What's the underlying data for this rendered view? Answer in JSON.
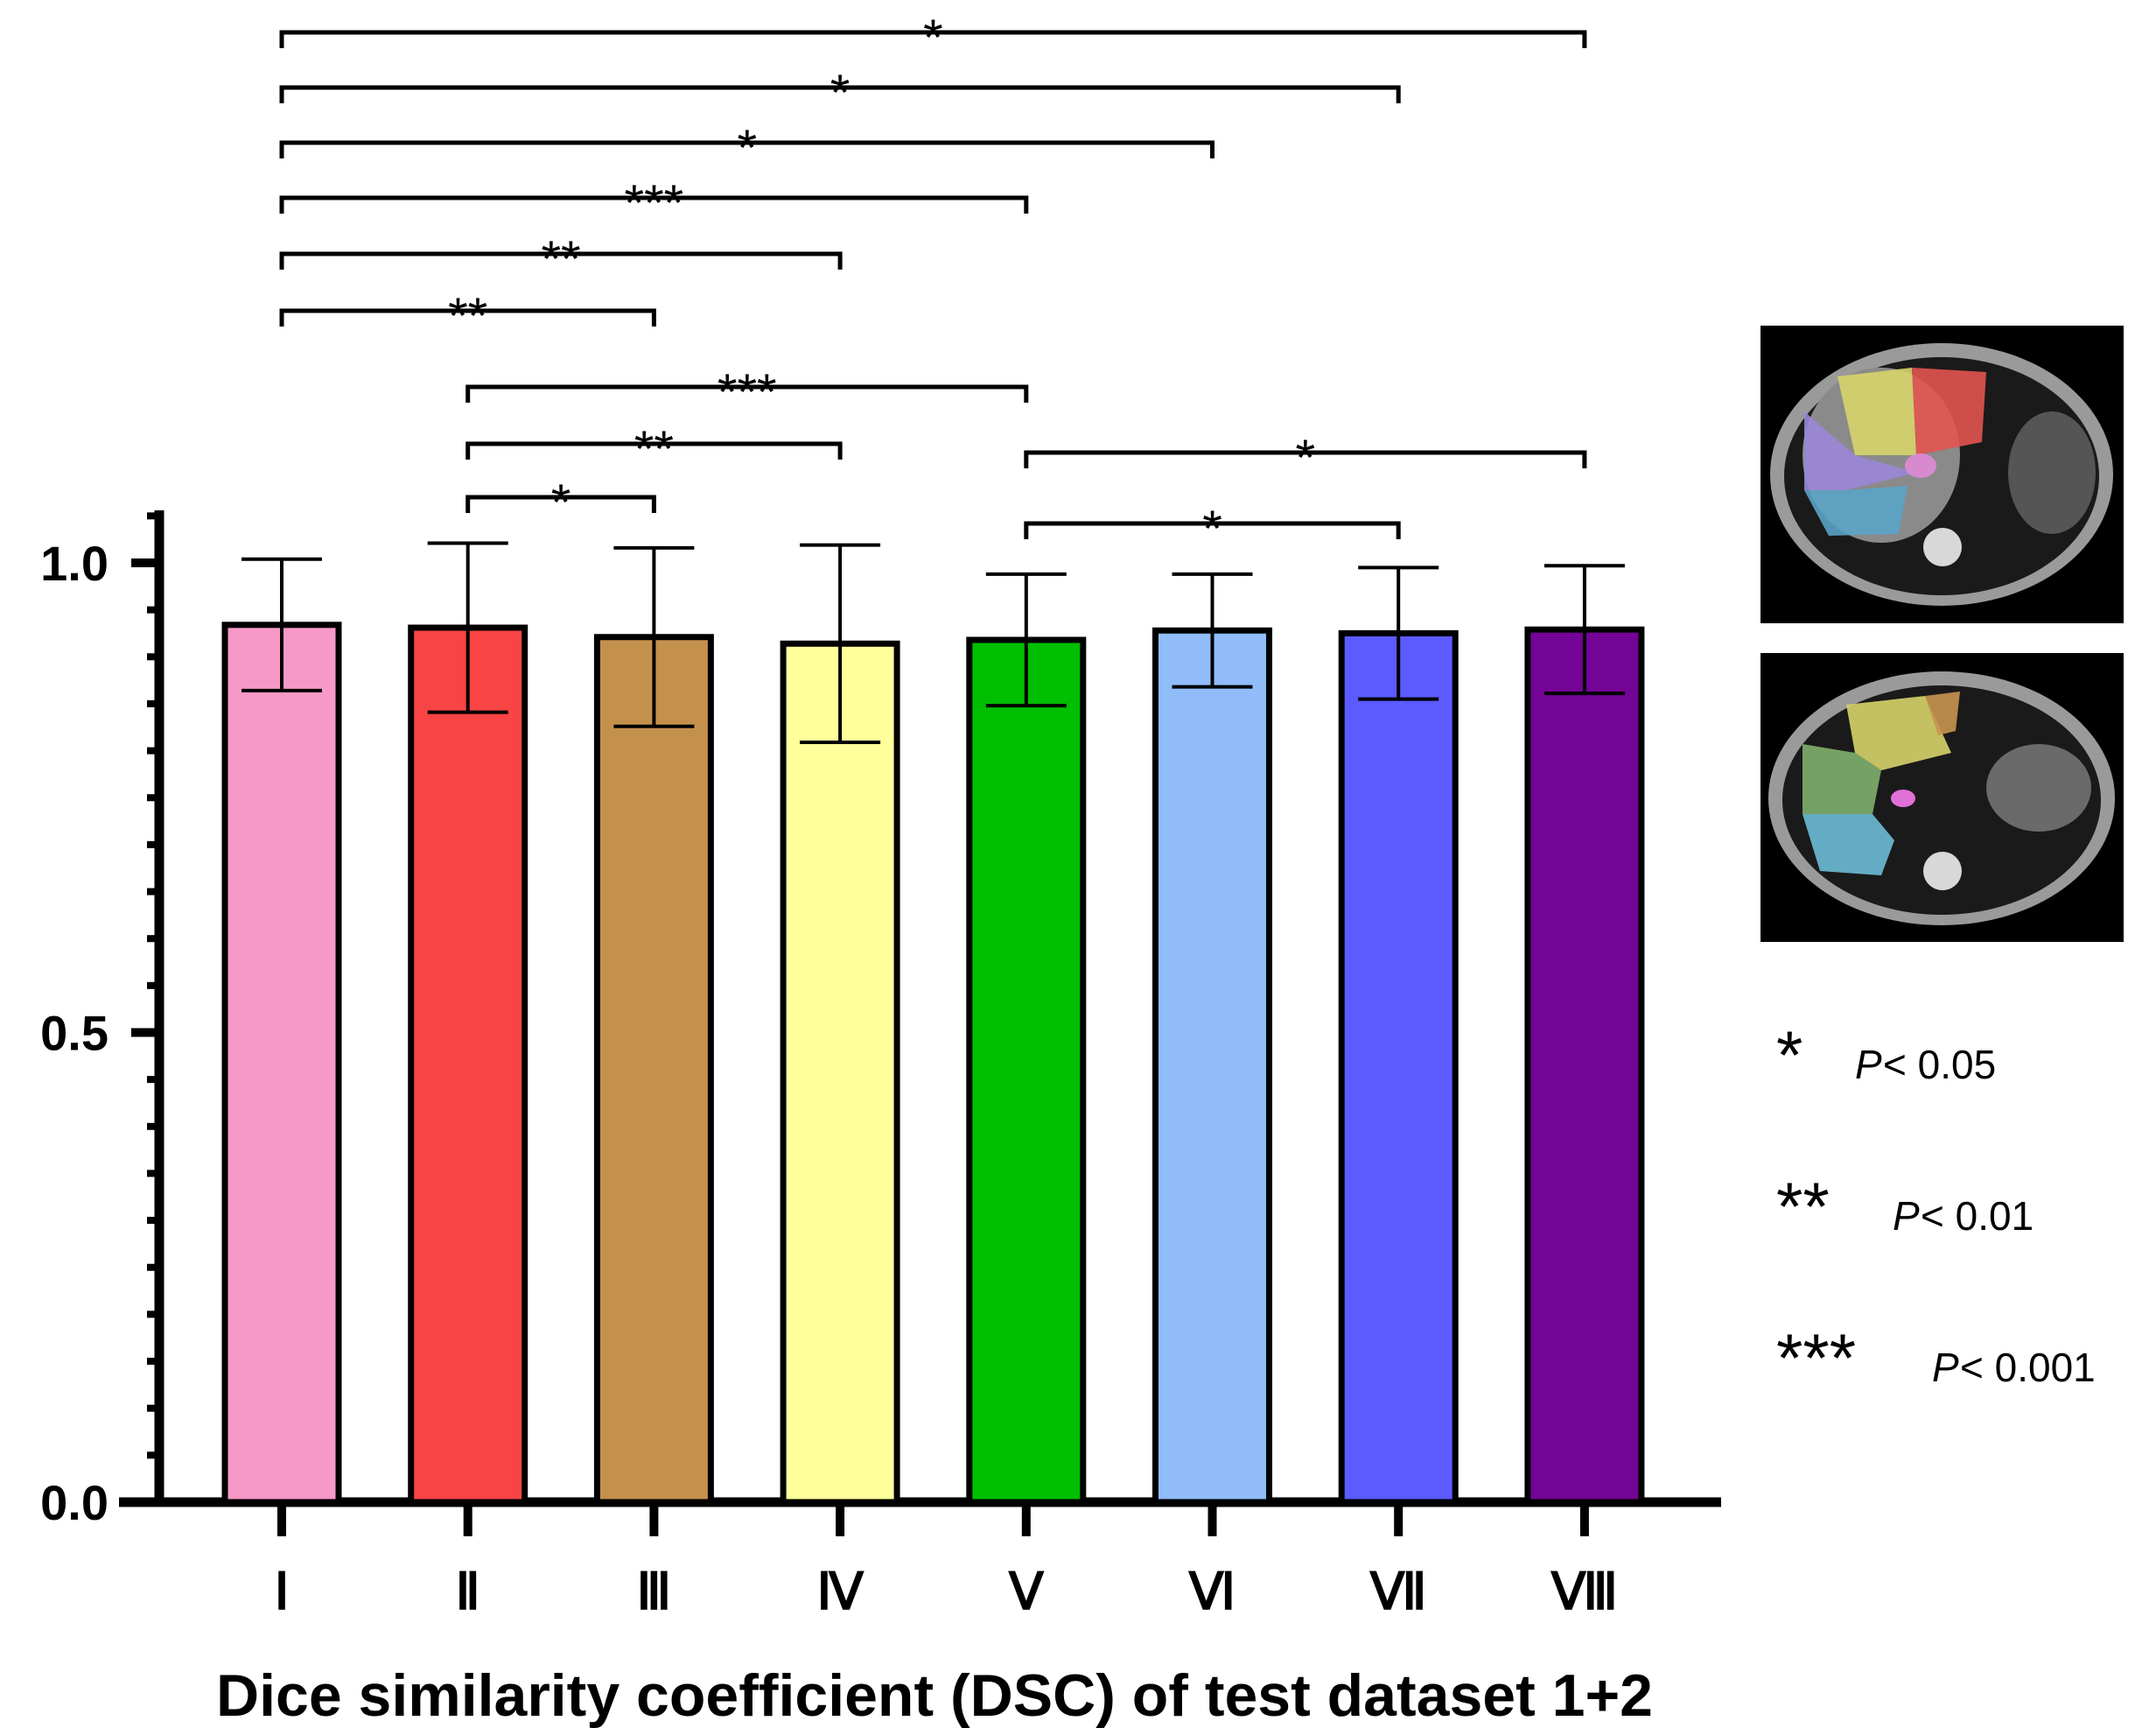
{
  "chart_data": {
    "type": "bar",
    "title": "",
    "xlabel": "Dice similarity coefficient (DSC) of test dataset 1+2",
    "ylabel": "",
    "ylim": [
      0,
      1.05
    ],
    "yticks": [
      {
        "value": 0.0,
        "label": "0.0"
      },
      {
        "value": 0.5,
        "label": "0.5"
      },
      {
        "value": 1.0,
        "label": "1.0"
      }
    ],
    "y_minor_step": 0.05,
    "grid": false,
    "categories": [
      "Ⅰ",
      "Ⅱ",
      "Ⅲ",
      "Ⅳ",
      "Ⅴ",
      "Ⅵ",
      "Ⅶ",
      "Ⅷ"
    ],
    "values": [
      0.934,
      0.931,
      0.921,
      0.914,
      0.918,
      0.928,
      0.925,
      0.929
    ],
    "errors": [
      0.07,
      0.09,
      0.095,
      0.105,
      0.07,
      0.06,
      0.07,
      0.068
    ],
    "colors": [
      "#F799C8",
      "#F84444",
      "#C4914C",
      "#FFFF9C",
      "#00BE00",
      "#90BDFA",
      "#5B5BFF",
      "#730496"
    ],
    "comparisons": [
      {
        "from": 0,
        "to": 7,
        "stars": "*"
      },
      {
        "from": 0,
        "to": 6,
        "stars": "*"
      },
      {
        "from": 0,
        "to": 5,
        "stars": "*"
      },
      {
        "from": 0,
        "to": 4,
        "stars": "***"
      },
      {
        "from": 0,
        "to": 3,
        "stars": "**"
      },
      {
        "from": 0,
        "to": 2,
        "stars": "**"
      },
      {
        "from": 1,
        "to": 4,
        "stars": "***"
      },
      {
        "from": 1,
        "to": 3,
        "stars": "**"
      },
      {
        "from": 1,
        "to": 2,
        "stars": "*"
      },
      {
        "from": 4,
        "to": 7,
        "stars": "*"
      },
      {
        "from": 4,
        "to": 6,
        "stars": "*"
      }
    ]
  },
  "legend": {
    "items": [
      {
        "stars": "*",
        "p_symbol": "P",
        "relation": "< 0.05"
      },
      {
        "stars": "**",
        "p_symbol": "P",
        "relation": "< 0.01"
      },
      {
        "stars": "***",
        "p_symbol": "P",
        "relation": "< 0.001"
      }
    ]
  }
}
